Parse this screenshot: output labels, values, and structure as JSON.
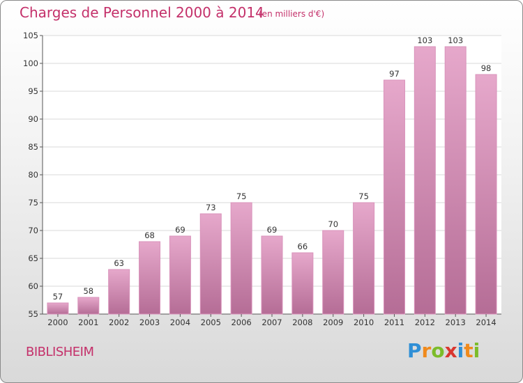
{
  "header": {
    "title": "Charges de Personnel 2000 à 2014",
    "subtitle": "(en milliers d'€)"
  },
  "footer": {
    "commune": "BIBLISHEIM",
    "logo": "Proxiti"
  },
  "colors": {
    "title": "#c4306a",
    "bar_top": "#e6a8cb",
    "bar_bottom": "#b56d96",
    "logo_letters": [
      "#2f8fd6",
      "#f08a1c",
      "#7cbc2a",
      "#d9362f",
      "#2f8fd6",
      "#f08a1c",
      "#7cbc2a"
    ]
  },
  "chart_data": {
    "type": "bar",
    "categories": [
      "2000",
      "2001",
      "2002",
      "2003",
      "2004",
      "2005",
      "2006",
      "2007",
      "2008",
      "2009",
      "2010",
      "2011",
      "2012",
      "2013",
      "2014"
    ],
    "values": [
      57,
      58,
      63,
      68,
      69,
      73,
      75,
      69,
      66,
      70,
      75,
      97,
      103,
      103,
      98
    ],
    "title": "Charges de Personnel 2000 à 2014",
    "ylim": [
      55,
      105
    ],
    "yticks": [
      55,
      60,
      65,
      70,
      75,
      80,
      85,
      90,
      95,
      100,
      105
    ],
    "grid": true
  }
}
